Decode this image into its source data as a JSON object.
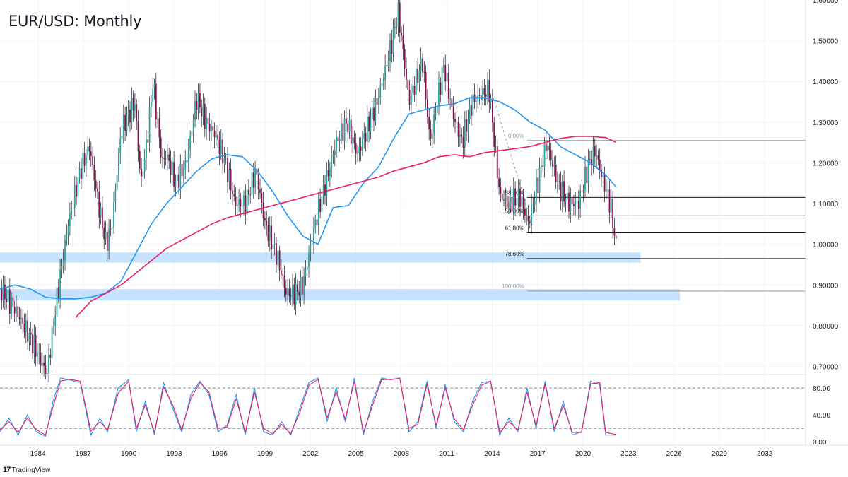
{
  "header": {
    "title": "EUR/USD: Monthly"
  },
  "footer": {
    "brand": "TradingView",
    "logo": "tradingview-logo-icon"
  },
  "colors": {
    "up": "#26a69a",
    "down": "#880e4f",
    "ma_slow": "#e91e63",
    "ma_fast": "#2196f3",
    "zone": "#bbdefb",
    "stoch_k": "#2196f3",
    "stoch_d": "#e91e63"
  },
  "chart_data": [
    {
      "type": "line",
      "title": "EUR/USD: Monthly",
      "x_ticks": [
        "1984",
        "1987",
        "1990",
        "1993",
        "1996",
        "1999",
        "2002",
        "2005",
        "2008",
        "2011",
        "2014",
        "2017",
        "2020",
        "2023",
        "2026",
        "2029",
        "2032"
      ],
      "y_ticks": [
        "0.70000",
        "0.80000",
        "0.90000",
        "1.00000",
        "1.10000",
        "1.20000",
        "1.30000",
        "1.40000",
        "1.50000",
        "1.60000"
      ],
      "ylim": [
        0.68,
        1.6
      ],
      "xlim": [
        1982.0,
        2035.2
      ],
      "series": [
        {
          "kind": "price",
          "x": [
            1982.0,
            1983.0,
            1984.0,
            1985.1,
            1985.8,
            1986.5,
            1987.3,
            1987.9,
            1988.5,
            1989.0,
            1989.4,
            1990.0,
            1990.9,
            1991.3,
            1991.7,
            1992.1,
            1992.7,
            1993.0,
            1993.6,
            1994.3,
            1995.0,
            1995.6,
            1996.2,
            1996.9,
            1997.5,
            1998.2,
            1998.9,
            1999.5,
            2000.3,
            2000.9,
            2001.5,
            2002.0,
            2002.8,
            2003.5,
            2004.2,
            2004.9,
            2005.6,
            2006.2,
            2006.9,
            2007.6,
            2008.3,
            2008.6,
            2009.0,
            2009.9,
            2010.4,
            2011.3,
            2011.9,
            2012.5,
            2013.2,
            2013.9,
            2014.3,
            2015.0,
            2015.6,
            2016.3,
            2016.9,
            2017.5,
            2018.1,
            2018.9,
            2019.6,
            2020.2,
            2020.9,
            2021.3,
            2021.8,
            2022.3,
            2022.7
          ],
          "y": [
            0.89,
            0.84,
            0.77,
            0.68,
            0.88,
            1.05,
            1.18,
            1.24,
            1.1,
            1.0,
            1.05,
            1.28,
            1.35,
            1.15,
            1.25,
            1.4,
            1.2,
            1.22,
            1.15,
            1.2,
            1.36,
            1.3,
            1.27,
            1.2,
            1.1,
            1.1,
            1.18,
            1.05,
            0.97,
            0.88,
            0.88,
            0.9,
            1.05,
            1.15,
            1.25,
            1.3,
            1.22,
            1.28,
            1.35,
            1.45,
            1.57,
            1.48,
            1.35,
            1.45,
            1.25,
            1.44,
            1.32,
            1.25,
            1.35,
            1.37,
            1.38,
            1.12,
            1.1,
            1.12,
            1.05,
            1.15,
            1.25,
            1.14,
            1.1,
            1.1,
            1.2,
            1.23,
            1.16,
            1.1,
            0.99
          ]
        },
        {
          "name": "",
          "kind": "ma_fast",
          "x": [
            1982.0,
            1983.0,
            1984.0,
            1985.0,
            1986.0,
            1987.0,
            1988.0,
            1989.0,
            1990.0,
            1991.0,
            1992.0,
            1993.0,
            1994.0,
            1995.0,
            1996.0,
            1997.0,
            1998.0,
            1999.0,
            2000.0,
            2001.0,
            2002.0,
            2003.0,
            2004.0,
            2005.0,
            2006.0,
            2007.0,
            2008.0,
            2009.0,
            2010.0,
            2011.0,
            2012.0,
            2013.0,
            2014.0,
            2015.0,
            2016.0,
            2017.0,
            2018.0,
            2019.0,
            2020.0,
            2021.0,
            2022.0,
            2022.7
          ],
          "y": [
            0.89,
            0.9,
            0.89,
            0.87,
            0.866,
            0.866,
            0.87,
            0.88,
            0.91,
            0.98,
            1.05,
            1.1,
            1.14,
            1.18,
            1.21,
            1.22,
            1.215,
            1.18,
            1.13,
            1.07,
            1.02,
            1.0,
            1.09,
            1.095,
            1.15,
            1.19,
            1.26,
            1.32,
            1.33,
            1.34,
            1.345,
            1.36,
            1.36,
            1.35,
            1.33,
            1.3,
            1.28,
            1.24,
            1.22,
            1.2,
            1.17,
            1.14
          ]
        },
        {
          "name": "",
          "kind": "ma_slow",
          "x": [
            1987.0,
            1988.0,
            1989.0,
            1990.0,
            1991.0,
            1992.0,
            1993.0,
            1994.0,
            1995.0,
            1996.0,
            1997.0,
            1998.0,
            1999.0,
            2000.0,
            2001.0,
            2002.0,
            2003.0,
            2004.0,
            2005.0,
            2006.0,
            2007.0,
            2008.0,
            2009.0,
            2010.0,
            2011.0,
            2012.0,
            2013.0,
            2014.0,
            2015.0,
            2016.0,
            2017.0,
            2018.0,
            2019.0,
            2020.0,
            2021.0,
            2022.0,
            2022.7
          ],
          "y": [
            0.82,
            0.86,
            0.88,
            0.9,
            0.93,
            0.96,
            0.99,
            1.01,
            1.03,
            1.05,
            1.065,
            1.075,
            1.085,
            1.095,
            1.105,
            1.115,
            1.125,
            1.135,
            1.145,
            1.155,
            1.165,
            1.18,
            1.19,
            1.2,
            1.215,
            1.22,
            1.215,
            1.225,
            1.23,
            1.235,
            1.24,
            1.25,
            1.26,
            1.265,
            1.265,
            1.262,
            1.25
          ]
        }
      ],
      "fibonacci": {
        "levels": [
          {
            "label": "0.00%",
            "value": 1.255
          },
          {
            "label": "38.20%",
            "value": 1.115
          },
          {
            "label": "50.00%",
            "value": 1.07
          },
          {
            "label": "61.80%",
            "value": 1.028
          },
          {
            "label": "78.60%",
            "value": 0.965
          },
          {
            "label": "100.00%",
            "value": 0.885
          }
        ],
        "start_x": 2016.8
      },
      "zones": [
        {
          "low": 0.955,
          "high": 0.98,
          "x_end": 2024.3
        },
        {
          "low": 0.862,
          "high": 0.89,
          "x_end": 2026.9
        }
      ]
    },
    {
      "type": "line",
      "ylim": [
        -5,
        100
      ],
      "y_ticks": [
        "0.00",
        "40.00",
        "80.00"
      ],
      "dashed_levels": [
        80,
        20
      ],
      "series": [
        {
          "name": "",
          "kind": "stoch_k",
          "x": [
            1982.0,
            1982.6,
            1983.2,
            1983.8,
            1984.4,
            1985.0,
            1985.5,
            1986.0,
            1986.6,
            1987.3,
            1988.0,
            1988.6,
            1989.1,
            1989.8,
            1990.5,
            1991.0,
            1991.6,
            1992.2,
            1992.8,
            1993.4,
            1994.0,
            1994.6,
            1995.2,
            1995.8,
            1996.4,
            1997.0,
            1997.6,
            1998.2,
            1998.8,
            1999.4,
            2000.0,
            2000.6,
            2001.2,
            2001.8,
            2002.4,
            2003.0,
            2003.6,
            2004.2,
            2004.8,
            2005.4,
            2006.0,
            2006.6,
            2007.2,
            2007.8,
            2008.4,
            2009.0,
            2009.6,
            2010.2,
            2010.8,
            2011.4,
            2012.0,
            2012.6,
            2013.2,
            2013.8,
            2014.4,
            2015.0,
            2015.6,
            2016.2,
            2016.8,
            2017.4,
            2018.0,
            2018.6,
            2019.2,
            2019.8,
            2020.4,
            2021.0,
            2021.6,
            2022.0,
            2022.4,
            2022.7
          ],
          "y": [
            15,
            35,
            10,
            40,
            15,
            8,
            60,
            95,
            92,
            88,
            10,
            35,
            15,
            80,
            92,
            15,
            60,
            10,
            88,
            50,
            15,
            70,
            90,
            70,
            15,
            25,
            70,
            10,
            80,
            15,
            10,
            30,
            10,
            50,
            88,
            95,
            30,
            80,
            30,
            95,
            10,
            60,
            95,
            92,
            95,
            15,
            30,
            90,
            20,
            85,
            30,
            15,
            60,
            88,
            90,
            10,
            35,
            15,
            80,
            20,
            90,
            15,
            60,
            10,
            15,
            90,
            85,
            10,
            10,
            10
          ]
        },
        {
          "name": "",
          "kind": "stoch_d",
          "x": [
            1982.0,
            1982.6,
            1983.2,
            1983.8,
            1984.4,
            1985.0,
            1985.5,
            1986.0,
            1986.6,
            1987.3,
            1988.0,
            1988.6,
            1989.1,
            1989.8,
            1990.5,
            1991.0,
            1991.6,
            1992.2,
            1992.8,
            1993.4,
            1994.0,
            1994.6,
            1995.2,
            1995.8,
            1996.4,
            1997.0,
            1997.6,
            1998.2,
            1998.8,
            1999.4,
            2000.0,
            2000.6,
            2001.2,
            2001.8,
            2002.4,
            2003.0,
            2003.6,
            2004.2,
            2004.8,
            2005.4,
            2006.0,
            2006.6,
            2007.2,
            2007.8,
            2008.4,
            2009.0,
            2009.6,
            2010.2,
            2010.8,
            2011.4,
            2012.0,
            2012.6,
            2013.2,
            2013.8,
            2014.4,
            2015.0,
            2015.6,
            2016.2,
            2016.8,
            2017.4,
            2018.0,
            2018.6,
            2019.2,
            2019.8,
            2020.4,
            2021.0,
            2021.6,
            2022.0,
            2022.4,
            2022.7
          ],
          "y": [
            18,
            30,
            14,
            35,
            18,
            10,
            52,
            90,
            93,
            90,
            16,
            30,
            18,
            72,
            90,
            20,
            55,
            14,
            82,
            55,
            18,
            64,
            88,
            74,
            20,
            22,
            64,
            14,
            74,
            20,
            12,
            26,
            12,
            44,
            84,
            93,
            36,
            74,
            34,
            90,
            14,
            54,
            92,
            93,
            94,
            20,
            26,
            86,
            24,
            80,
            34,
            18,
            54,
            84,
            90,
            14,
            30,
            18,
            74,
            24,
            86,
            20,
            54,
            14,
            14,
            86,
            88,
            14,
            12,
            11
          ]
        }
      ]
    }
  ]
}
